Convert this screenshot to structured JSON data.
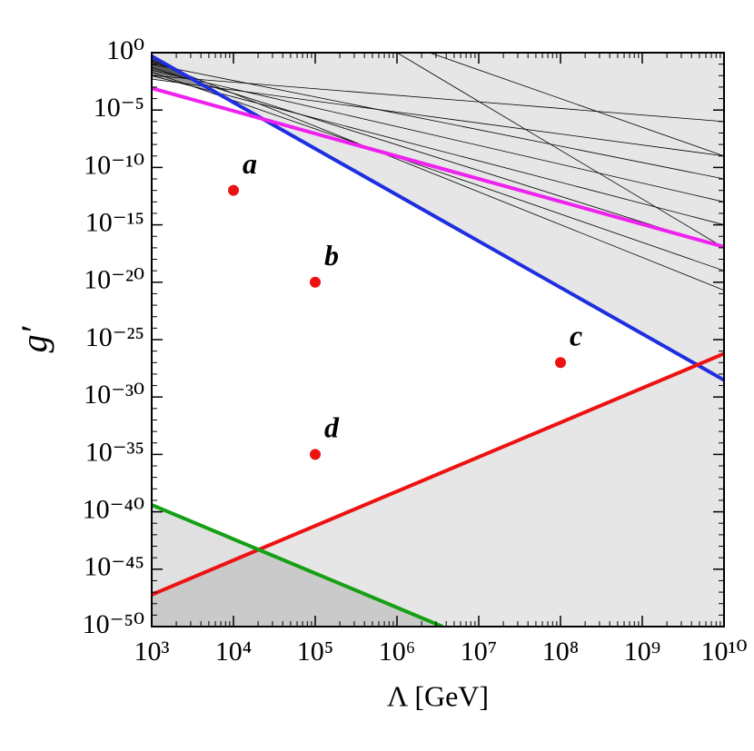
{
  "chart_data": {
    "type": "line",
    "x_label": "Λ [GeV]",
    "y_label": "g′",
    "xlog": true,
    "ylog": true,
    "xlim": [
      1000,
      10000000000
    ],
    "ylim": [
      1e-50,
      1
    ],
    "xticks": [
      {
        "value": 1000,
        "label": "10³"
      },
      {
        "value": 10000,
        "label": "10⁴"
      },
      {
        "value": 100000,
        "label": "10⁵"
      },
      {
        "value": 1000000,
        "label": "10⁶"
      },
      {
        "value": 10000000,
        "label": "10⁷"
      },
      {
        "value": 100000000,
        "label": "10⁸"
      },
      {
        "value": 1000000000,
        "label": "10⁹"
      },
      {
        "value": 10000000000,
        "label": "10¹⁰"
      }
    ],
    "yticks": [
      {
        "value": 1,
        "label": "10⁰"
      },
      {
        "value": 1e-05,
        "label": "10⁻⁵"
      },
      {
        "value": 1e-10,
        "label": "10⁻¹⁰"
      },
      {
        "value": 1e-15,
        "label": "10⁻¹⁵"
      },
      {
        "value": 1e-20,
        "label": "10⁻²⁰"
      },
      {
        "value": 1e-25,
        "label": "10⁻²⁵"
      },
      {
        "value": 1e-30,
        "label": "10⁻³⁰"
      },
      {
        "value": 1e-35,
        "label": "10⁻³⁵"
      },
      {
        "value": 1e-40,
        "label": "10⁻⁴⁰"
      },
      {
        "value": 1e-45,
        "label": "10⁻⁴⁵"
      },
      {
        "value": 1e-50,
        "label": "10⁻⁵⁰"
      }
    ],
    "series": [
      {
        "x": [
          1000,
          10000000000
        ],
        "values": [
          0.2,
          2e-21
        ],
        "color": "#000000",
        "width": 0.8,
        "fill": "above",
        "fill_color": "rgba(0,0,0,0.16)"
      },
      {
        "x": [
          1000,
          10000000000
        ],
        "values": [
          0.02,
          1e-19
        ],
        "color": "#000000",
        "width": 0.8,
        "fill": "above",
        "fill_color": "rgba(0,0,0,0.16)"
      },
      {
        "x": [
          1000,
          10000000000
        ],
        "values": [
          0.05,
          1e-17
        ],
        "color": "#000000",
        "width": 0.8,
        "fill": "above",
        "fill_color": "rgba(0,0,0,0.16)"
      },
      {
        "x": [
          1000,
          10000000000
        ],
        "values": [
          0.01,
          1e-15
        ],
        "color": "#000000",
        "width": 0.8,
        "fill": "above",
        "fill_color": "rgba(0,0,0,0.16)"
      },
      {
        "x": [
          1000,
          10000000000
        ],
        "values": [
          0.03,
          1e-13
        ],
        "color": "#000000",
        "width": 0.8,
        "fill": "above",
        "fill_color": "rgba(0,0,0,0.16)"
      },
      {
        "x": [
          1000,
          10000000000
        ],
        "values": [
          0.1,
          1e-11
        ],
        "color": "#000000",
        "width": 0.8,
        "fill": "above",
        "fill_color": "rgba(0,0,0,0.16)"
      },
      {
        "x": [
          1000,
          10000000000
        ],
        "values": [
          0.005,
          1e-09
        ],
        "color": "#000000",
        "width": 0.8,
        "fill": "above",
        "fill_color": "rgba(0,0,0,0.16)"
      },
      {
        "x": [
          1000,
          10000000000
        ],
        "values": [
          0.01,
          1e-06
        ],
        "color": "#000000",
        "width": 0.8,
        "fill": "above",
        "fill_color": "rgba(0,0,0,0.16)"
      },
      {
        "x": [
          1000000,
          10000000000
        ],
        "values": [
          1,
          1e-17
        ],
        "color": "#000000",
        "width": 0.8,
        "fill": "above",
        "fill_color": "rgba(0,0,0,0.16)"
      },
      {
        "x": [
          2500000,
          10000000000
        ],
        "values": [
          1,
          1e-09
        ],
        "color": "#000000",
        "width": 0.8,
        "fill": "above",
        "fill_color": "rgba(0,0,0,0.16)"
      },
      {
        "x": [
          1000,
          10000000000
        ],
        "values": [
          0.5,
          3e-29
        ],
        "color": "#1f2fe0",
        "width": 4,
        "fill": "above",
        "fill_color": "#e6e6e6"
      },
      {
        "x": [
          1000,
          10000000000
        ],
        "values": [
          0.0008,
          1.2e-17
        ],
        "color": "#ee22ee",
        "width": 4
      },
      {
        "x": [
          1000,
          10000000000
        ],
        "values": [
          6e-48,
          6e-27
        ],
        "color": "#ee1111",
        "width": 4,
        "fill": "below",
        "fill_color": "#e6e6e6"
      },
      {
        "x": [
          1000,
          3600000
        ],
        "values": [
          4e-40,
          1e-50
        ],
        "color": "#14a014",
        "width": 4,
        "fill": "below",
        "fill_color": "rgba(0,0,0,0.12)"
      }
    ],
    "points": {
      "x": [
        10000,
        100000,
        100000000,
        100000
      ],
      "values": [
        1e-12,
        1e-20,
        1e-27,
        1e-35
      ],
      "labels": [
        "a",
        "b",
        "c",
        "d"
      ],
      "color": "#ee1111"
    }
  }
}
